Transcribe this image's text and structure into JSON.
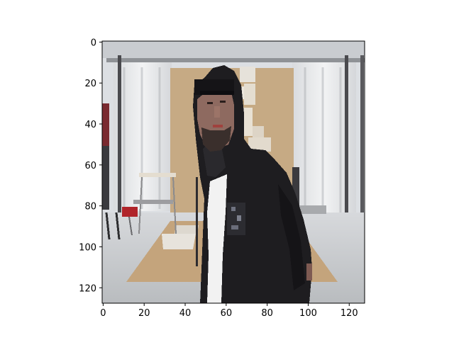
{
  "chart_data": {
    "type": "image",
    "xlim": [
      0,
      128
    ],
    "ylim": [
      128,
      0
    ],
    "x_ticks": [
      {
        "value": 0,
        "label": "0"
      },
      {
        "value": 20,
        "label": "20"
      },
      {
        "value": 40,
        "label": "40"
      },
      {
        "value": 60,
        "label": "60"
      },
      {
        "value": 80,
        "label": "80"
      },
      {
        "value": 100,
        "label": "100"
      },
      {
        "value": 120,
        "label": "120"
      }
    ],
    "y_ticks": [
      {
        "value": 0,
        "label": "0"
      },
      {
        "value": 20,
        "label": "20"
      },
      {
        "value": 40,
        "label": "40"
      },
      {
        "value": 60,
        "label": "60"
      },
      {
        "value": 80,
        "label": "80"
      },
      {
        "value": 100,
        "label": "100"
      },
      {
        "value": 120,
        "label": "120"
      }
    ],
    "grid": false,
    "colors": {
      "wall": "#dcdfe3",
      "ceiling": "#c9ccd0",
      "curtain": "#e8eaec",
      "backdrop": "#c6aa84",
      "floor": "#c2c4c6",
      "floor_paper": "#c4a47c",
      "hoodie": "#1e1d20",
      "shirt": "#f2f2f2",
      "skin": "#8e6a60",
      "beard": "#3a2f2c",
      "chair_red": "#b0242a",
      "pole": "#4a4a4e"
    }
  }
}
